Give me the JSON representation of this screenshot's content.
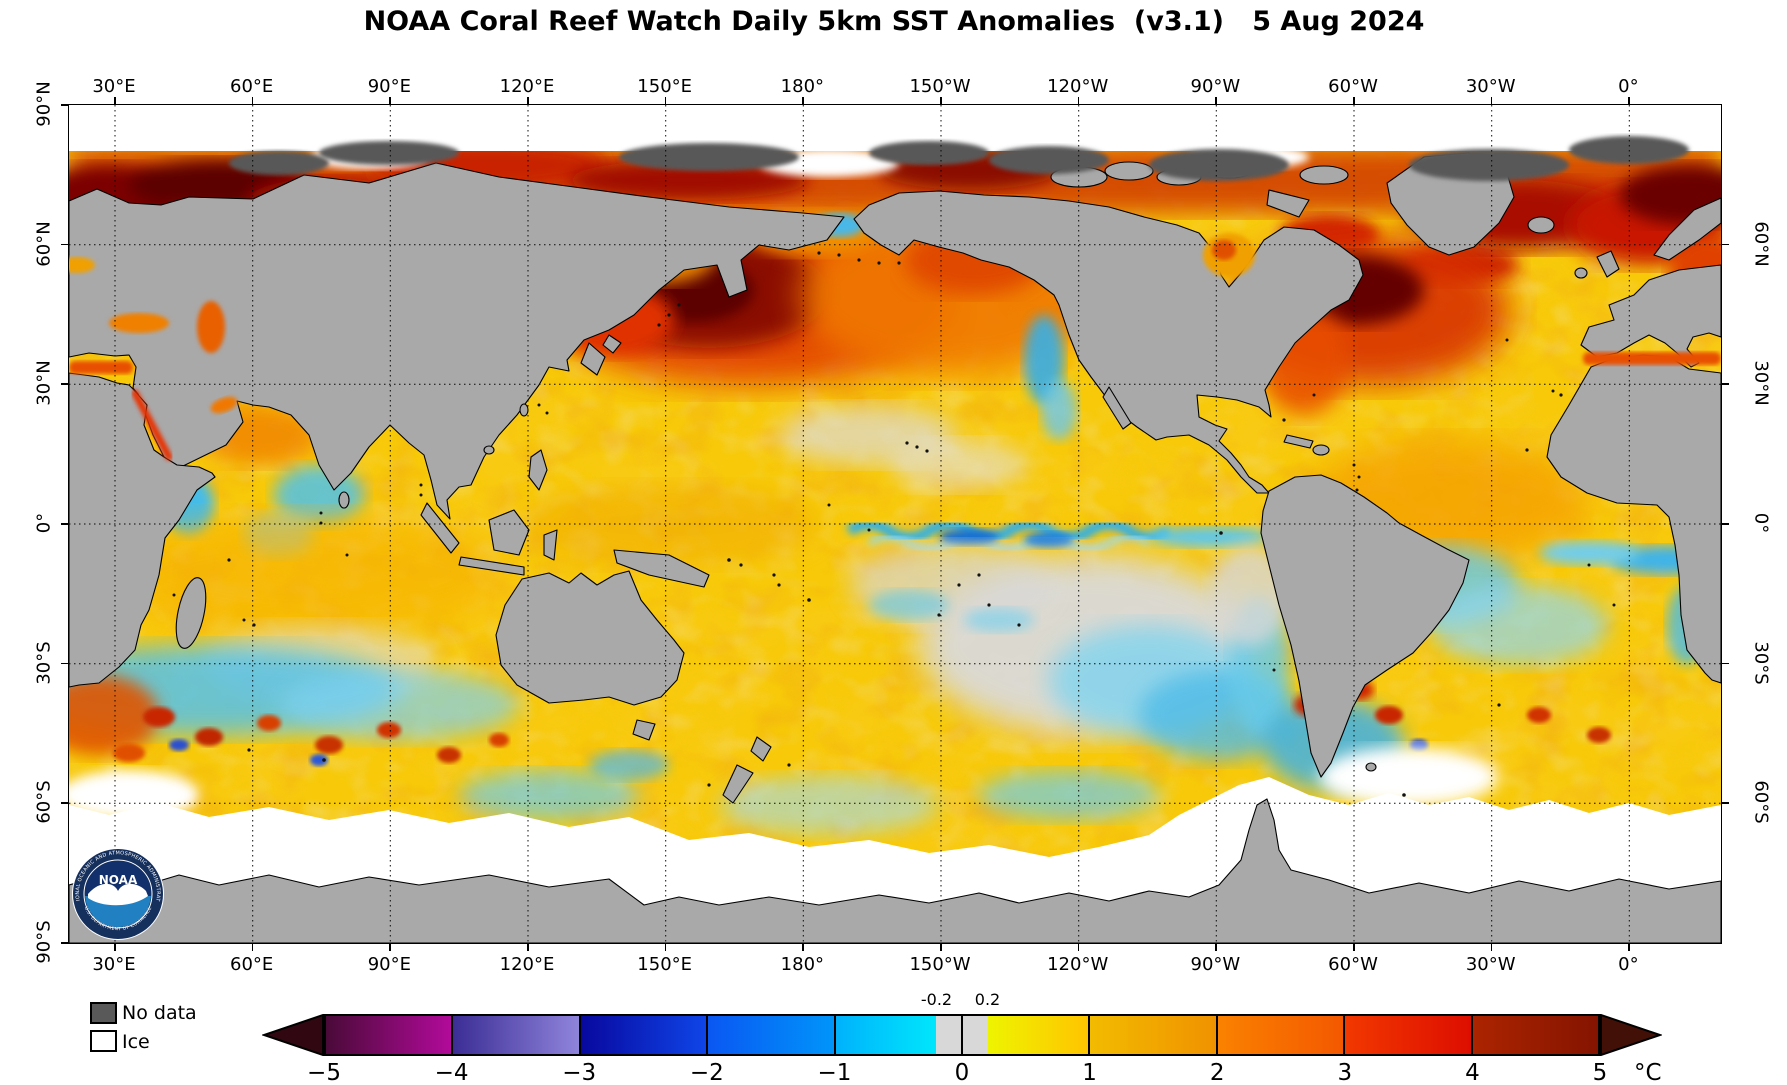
{
  "title": "NOAA Coral Reef Watch Daily 5km SST Anomalies  (v3.1)   5 Aug 2024",
  "map": {
    "top_axis": [
      "30°E",
      "60°E",
      "90°E",
      "120°E",
      "150°E",
      "180°",
      "150°W",
      "120°W",
      "90°W",
      "60°W",
      "30°W",
      "0°"
    ],
    "bottom_axis": [
      "30°E",
      "60°E",
      "90°E",
      "120°E",
      "150°E",
      "180°",
      "150°W",
      "120°W",
      "90°W",
      "60°W",
      "30°W",
      "0°"
    ],
    "left_axis": [
      "90°N",
      "60°N",
      "30°N",
      "0°",
      "30°S",
      "60°S",
      "90°S"
    ],
    "right_axis": [
      "60°N",
      "30°N",
      "0°",
      "30°S",
      "60°S"
    ]
  },
  "legend": {
    "no_data_label": "No data",
    "ice_label": "Ice"
  },
  "colorbar": {
    "unit_label": "°C",
    "range": [
      -5,
      5
    ],
    "ticks": [
      "−5",
      "−4",
      "−3",
      "−2",
      "−1",
      "0",
      "1",
      "2",
      "3",
      "4",
      "5"
    ],
    "top_ticks": [
      {
        "label": "-0.2",
        "value": -0.2
      },
      {
        "label": "0.2",
        "value": 0.2
      }
    ],
    "arrow_left_color": "#310812",
    "arrow_right_color": "#431007",
    "segments": [
      {
        "from": -5,
        "to": -4,
        "start": "#4a0a38",
        "end": "#b20a9a",
        "divider": false
      },
      {
        "from": -4,
        "to": -3,
        "start": "#3b2d94",
        "end": "#8f84dc",
        "divider": true
      },
      {
        "from": -3,
        "to": -2,
        "start": "#08089e",
        "end": "#0f45e8",
        "divider": true
      },
      {
        "from": -2,
        "to": -1,
        "start": "#0a57f2",
        "end": "#0095fa",
        "divider": true
      },
      {
        "from": -1,
        "to": -0.2,
        "start": "#00b2fc",
        "end": "#00e6fc",
        "divider": true
      },
      {
        "from": -0.2,
        "to": 0,
        "start": "#d8d8d8",
        "end": "#d8d8d8",
        "divider": false
      },
      {
        "from": 0,
        "to": 0.2,
        "start": "#d8d8d8",
        "end": "#d8d8d8",
        "divider": true
      },
      {
        "from": 0.2,
        "to": 1,
        "start": "#eef400",
        "end": "#ffc400",
        "divider": false
      },
      {
        "from": 1,
        "to": 2,
        "start": "#f2bb00",
        "end": "#f09200",
        "divider": true
      },
      {
        "from": 2,
        "to": 3,
        "start": "#fa8200",
        "end": "#f45800",
        "divider": true
      },
      {
        "from": 3,
        "to": 4,
        "start": "#f23800",
        "end": "#dd0e00",
        "divider": true
      },
      {
        "from": 4,
        "to": 5,
        "start": "#ac2400",
        "end": "#841400",
        "divider": true
      }
    ]
  },
  "colors": {
    "land": "#a9a9a9",
    "coast": "#000000",
    "no_data": "#595959",
    "ice": "#ffffff",
    "ocean_base": "#f7c908",
    "grid": "#000000"
  },
  "logo": {
    "org": "NOAA",
    "ring_top": "NATIONAL OCEANIC AND ATMOSPHERIC ADMINISTRATION",
    "ring_bottom": "U.S. DEPARTMENT OF COMMERCE"
  }
}
